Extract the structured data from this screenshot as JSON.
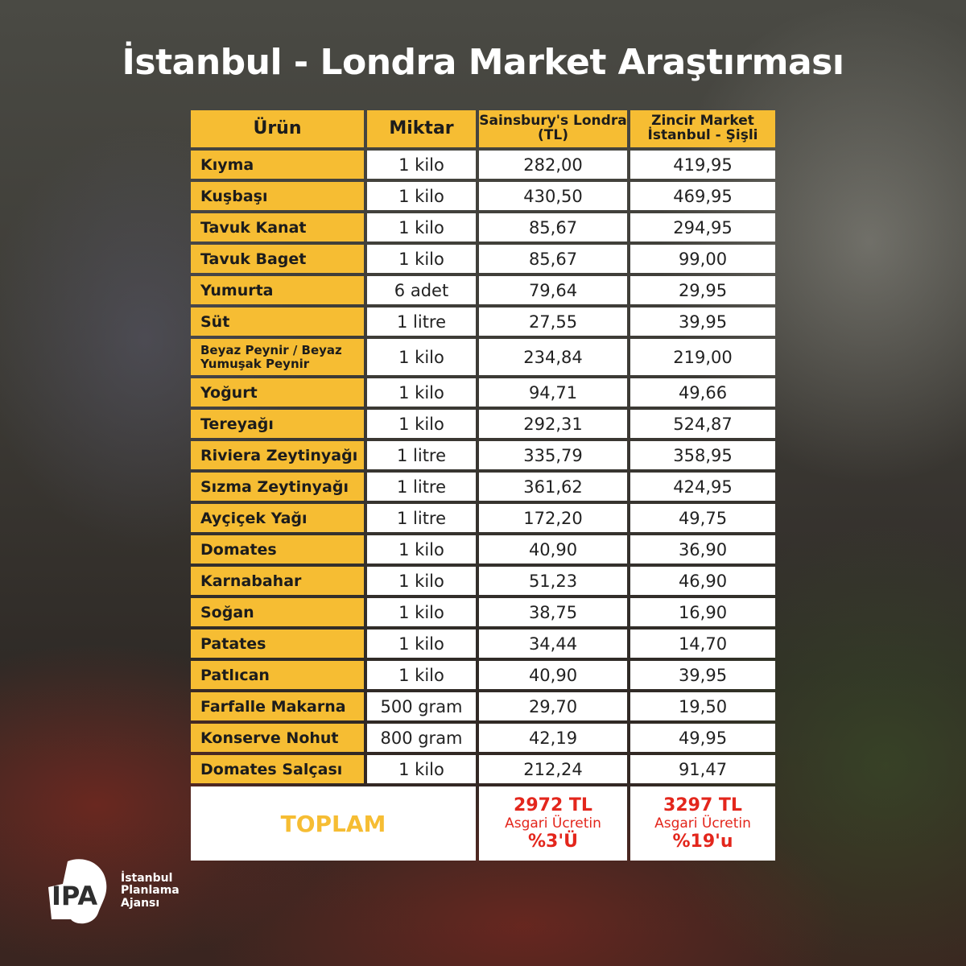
{
  "title": "İstanbul - Londra Market Araştırması",
  "headers": [
    "Ürün",
    "Miktar",
    "Sainsbury's Londra (TL)",
    "Zincir Market İstanbul - Şişli"
  ],
  "rows": [
    {
      "product": "Kıyma",
      "qty": "1 kilo",
      "london": "282,00",
      "istanbul": "419,95"
    },
    {
      "product": "Kuşbaşı",
      "qty": "1 kilo",
      "london": "430,50",
      "istanbul": "469,95"
    },
    {
      "product": "Tavuk Kanat",
      "qty": "1 kilo",
      "london": "85,67",
      "istanbul": "294,95"
    },
    {
      "product": "Tavuk Baget",
      "qty": "1 kilo",
      "london": "85,67",
      "istanbul": "99,00"
    },
    {
      "product": "Yumurta",
      "qty": "6 adet",
      "london": "79,64",
      "istanbul": "29,95"
    },
    {
      "product": "Süt",
      "qty": "1 litre",
      "london": "27,55",
      "istanbul": "39,95"
    },
    {
      "product": "Beyaz Peynir / Beyaz Yumuşak Peynir",
      "qty": "1 kilo",
      "london": "234,84",
      "istanbul": "219,00"
    },
    {
      "product": "Yoğurt",
      "qty": "1 kilo",
      "london": "94,71",
      "istanbul": "49,66"
    },
    {
      "product": "Tereyağı",
      "qty": "1 kilo",
      "london": "292,31",
      "istanbul": "524,87"
    },
    {
      "product": "Riviera Zeytinyağı",
      "qty": "1 litre",
      "london": "335,79",
      "istanbul": "358,95"
    },
    {
      "product": "Sızma Zeytinyağı",
      "qty": "1 litre",
      "london": "361,62",
      "istanbul": "424,95"
    },
    {
      "product": "Ayçiçek Yağı",
      "qty": "1 litre",
      "london": "172,20",
      "istanbul": "49,75"
    },
    {
      "product": "Domates",
      "qty": "1 kilo",
      "london": "40,90",
      "istanbul": "36,90"
    },
    {
      "product": "Karnabahar",
      "qty": "1 kilo",
      "london": "51,23",
      "istanbul": "46,90"
    },
    {
      "product": "Soğan",
      "qty": "1 kilo",
      "london": "38,75",
      "istanbul": "16,90"
    },
    {
      "product": "Patates",
      "qty": "1 kilo",
      "london": "34,44",
      "istanbul": "14,70"
    },
    {
      "product": "Patlıcan",
      "qty": "1 kilo",
      "london": "40,90",
      "istanbul": "39,95"
    },
    {
      "product": "Farfalle Makarna",
      "qty": "500 gram",
      "london": "29,70",
      "istanbul": "19,50"
    },
    {
      "product": "Konserve Nohut",
      "qty": "800 gram",
      "london": "42,19",
      "istanbul": "49,95"
    },
    {
      "product": "Domates Salçası",
      "qty": "1 kilo",
      "london": "212,24",
      "istanbul": "91,47"
    }
  ],
  "total": {
    "label": "TOPLAM",
    "london": {
      "amount": "2972 TL",
      "note": "Asgari Ücretin",
      "percent": "%3'Ü"
    },
    "istanbul": {
      "amount": "3297 TL",
      "note": "Asgari Ücretin",
      "percent": "%19'u"
    }
  },
  "logo": {
    "mark": "İPA",
    "line1": "İstanbul",
    "line2": "Planlama",
    "line3": "Ajansı"
  },
  "colors": {
    "header": "#f6bd33",
    "total_text": "#e3261c"
  }
}
